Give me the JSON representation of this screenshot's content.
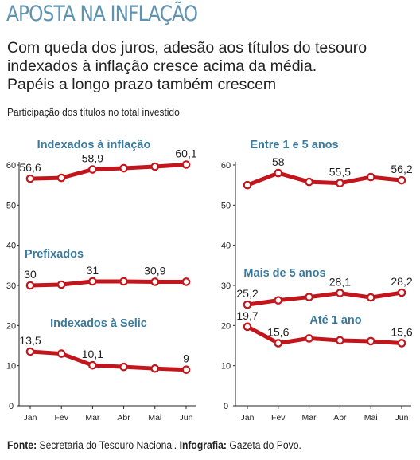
{
  "header": {
    "kicker": "APOSTA NA INFLAÇÃO",
    "lead": [
      "Com queda dos juros, adesão aos títulos do tesouro",
      "indexados à inflação cresce acima da média.",
      "Papéis a longo prazo também crescem"
    ],
    "subtitle": "Participação dos títulos no total investido"
  },
  "footer": {
    "source_label": "Fonte:",
    "source_text": " Secretaria do Tesouro Nacional. ",
    "credit_label": "Infografia:",
    "credit_text": " Gazeta do Povo."
  },
  "colors": {
    "line": "#c3161c",
    "label": "#3b7a9c",
    "axis": "#222222",
    "kicker": "#5f93b2"
  },
  "chart_data": [
    {
      "type": "line",
      "categories": [
        "Jan",
        "Fev",
        "Mar",
        "Abr",
        "Mai",
        "Jun"
      ],
      "ylim": [
        0,
        60
      ],
      "yticks": [
        "0",
        "10",
        "20",
        "30",
        "40",
        "50",
        "60"
      ],
      "series": [
        {
          "name": "Indexados à inflação",
          "values": [
            56.6,
            56.8,
            58.9,
            59.2,
            59.6,
            60.1
          ],
          "labels": [
            "56,6",
            "",
            "58,9",
            "",
            "",
            "60,1"
          ]
        },
        {
          "name": "Prefixados",
          "values": [
            30,
            30.2,
            31,
            31,
            30.9,
            30.9
          ],
          "labels": [
            "30",
            "",
            "31",
            "",
            "30,9",
            ""
          ]
        },
        {
          "name": "Indexados à Selic",
          "values": [
            13.5,
            13.0,
            10.1,
            9.7,
            9.3,
            9
          ],
          "labels": [
            "13,5",
            "",
            "10,1",
            "",
            "",
            "9"
          ]
        }
      ]
    },
    {
      "type": "line",
      "categories": [
        "Jan",
        "Fev",
        "Mar",
        "Abr",
        "Mai",
        "Jun"
      ],
      "ylim": [
        0,
        60
      ],
      "yticks": [
        "0",
        "10",
        "20",
        "30",
        "40",
        "50",
        "60"
      ],
      "series": [
        {
          "name": "Entre 1 e 5 anos",
          "values": [
            55,
            58,
            55.8,
            55.5,
            57,
            56.2
          ],
          "labels": [
            "",
            "58",
            "",
            "55,5",
            "",
            "56,2"
          ]
        },
        {
          "name": "Mais de 5 anos",
          "values": [
            25.2,
            26.3,
            27.1,
            28.1,
            27,
            28.2
          ],
          "labels": [
            "25,2",
            "",
            "",
            "28,1",
            "",
            "28,2"
          ]
        },
        {
          "name": "Até 1 ano",
          "values": [
            19.7,
            15.6,
            16.8,
            16.3,
            16.1,
            15.6
          ],
          "labels": [
            "19,7",
            "15,6",
            "",
            "",
            "",
            "15,6"
          ]
        }
      ]
    }
  ]
}
